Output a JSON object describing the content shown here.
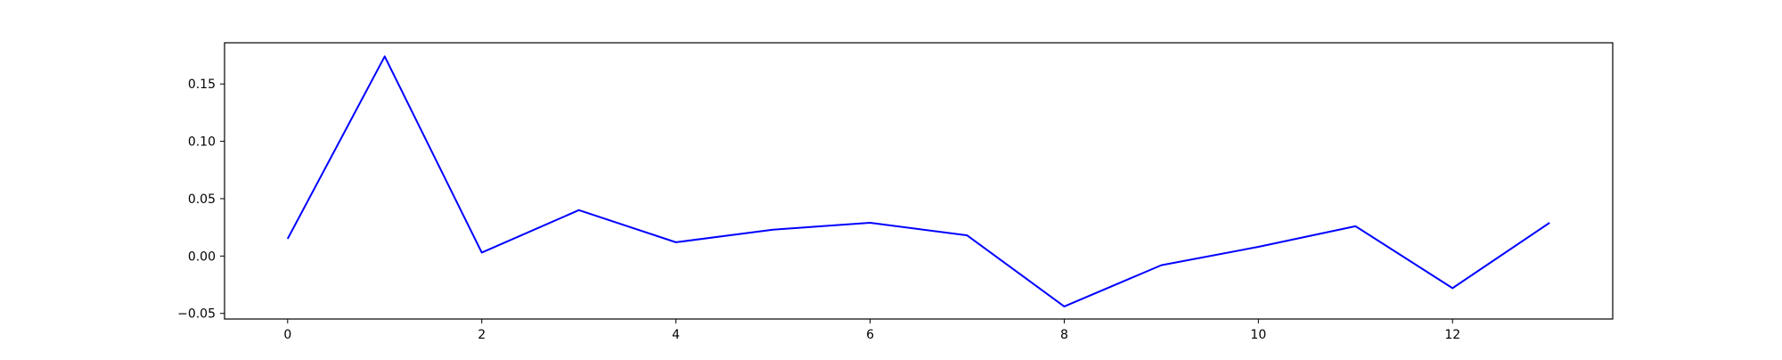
{
  "chart_data": {
    "type": "line",
    "title": "",
    "xlabel": "",
    "ylabel": "",
    "x": [
      0,
      1,
      2,
      3,
      4,
      5,
      6,
      7,
      8,
      9,
      10,
      11,
      12,
      13
    ],
    "series": [
      {
        "values": [
          0.015,
          0.174,
          0.003,
          0.04,
          0.012,
          0.023,
          0.029,
          0.018,
          -0.044,
          -0.008,
          0.008,
          0.026,
          -0.028,
          0.029
        ],
        "color": "#0000ff"
      }
    ],
    "xlim": [
      -0.65,
      13.65
    ],
    "ylim": [
      -0.0549,
      0.1859
    ],
    "xticks": [
      0,
      2,
      4,
      6,
      8,
      10,
      12
    ],
    "xtick_labels": [
      "0",
      "2",
      "4",
      "6",
      "8",
      "10",
      "12"
    ],
    "yticks": [
      -0.05,
      0.0,
      0.05,
      0.1,
      0.15
    ],
    "ytick_labels": [
      "−0.05",
      "0.00",
      "0.05",
      "0.10",
      "0.15"
    ],
    "grid": false,
    "legend": false
  }
}
